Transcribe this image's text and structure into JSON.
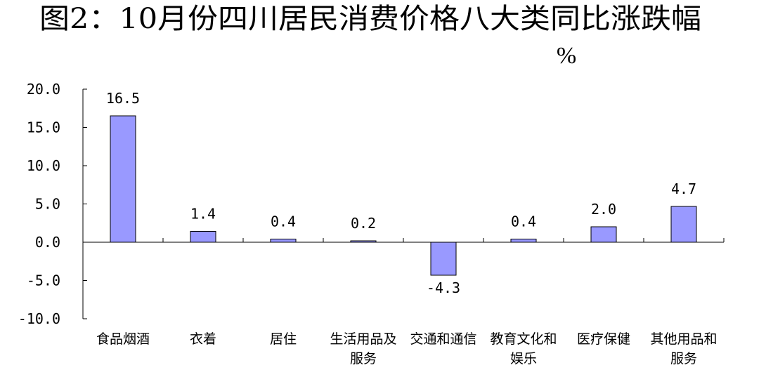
{
  "chart_data": {
    "type": "bar",
    "title": "图2：10月份四川居民消费价格八大类同比涨跌幅",
    "unit": "%",
    "categories": [
      "食品烟酒",
      "衣着",
      "居住",
      "生活用品及服务",
      "交通和通信",
      "教育文化和娱乐",
      "医疗保健",
      "其他用品和服务"
    ],
    "category_lines": [
      [
        "食品烟酒"
      ],
      [
        "衣着"
      ],
      [
        "居住"
      ],
      [
        "生活用品及",
        "服务"
      ],
      [
        "交通和通信"
      ],
      [
        "教育文化和",
        "娱乐"
      ],
      [
        "医疗保健"
      ],
      [
        "其他用品和",
        "服务"
      ]
    ],
    "values": [
      16.5,
      1.4,
      0.4,
      0.2,
      -4.3,
      0.4,
      2.0,
      4.7
    ],
    "data_labels": [
      "16.5",
      "1.4",
      "0.4",
      "0.2",
      "-4.3",
      "0.4",
      "2.0",
      "4.7"
    ],
    "y_ticks": [
      20,
      15,
      10,
      5,
      0,
      -5,
      -10
    ],
    "y_tick_labels": [
      "20.0",
      "15.0",
      "10.0",
      "5.0",
      "0.0",
      "-5.0",
      "-10.0"
    ],
    "ylim": [
      -10,
      20
    ],
    "grid": false,
    "legend": "none",
    "bar_color": "#9999ff"
  }
}
